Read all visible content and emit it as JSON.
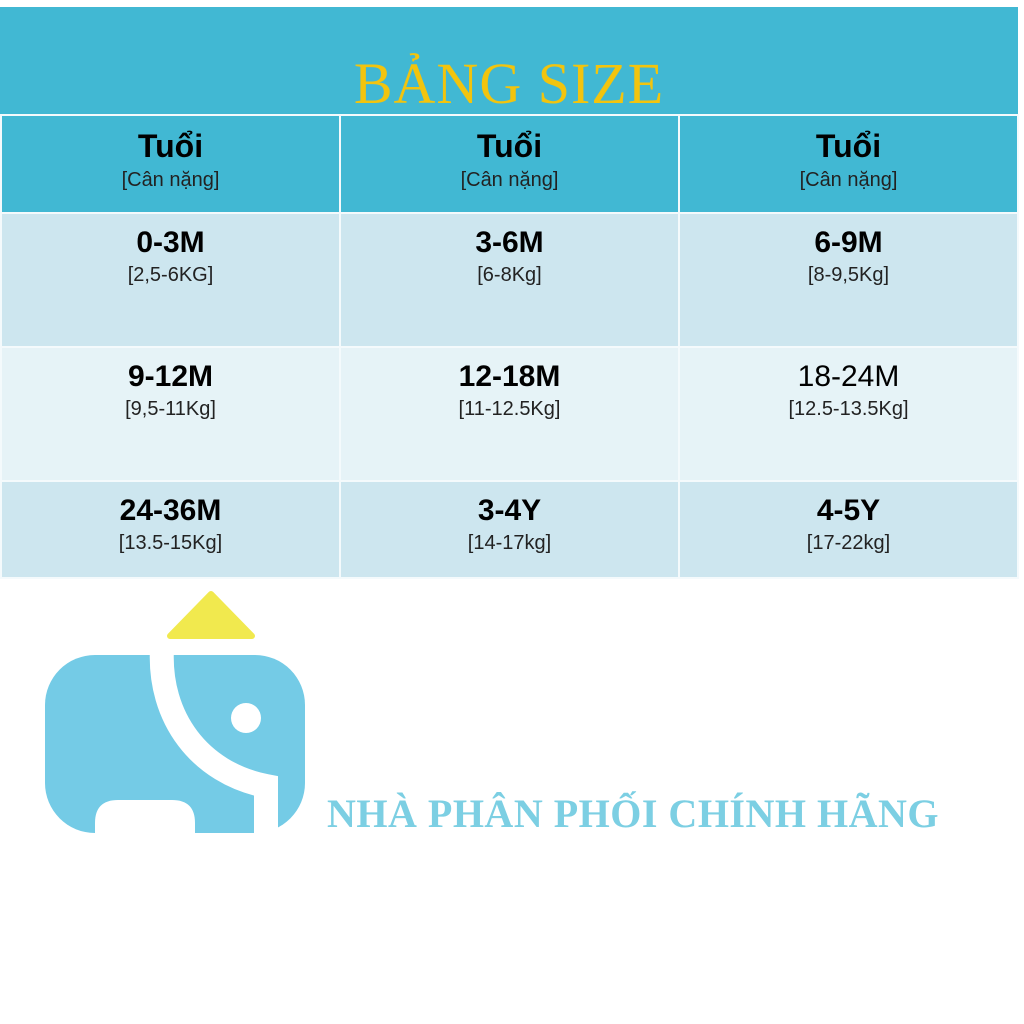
{
  "title": "BẢNG SIZE",
  "header": [
    {
      "age": "Tuổi",
      "weight": "[Cân nặng]"
    },
    {
      "age": "Tuổi",
      "weight": "[Cân nặng]"
    },
    {
      "age": "Tuổi",
      "weight": "[Cân nặng]"
    }
  ],
  "rows": [
    [
      {
        "age": "0-3M",
        "weight": "[2,5-6KG]"
      },
      {
        "age": "3-6M",
        "weight": "[6-8Kg]"
      },
      {
        "age": "6-9M",
        "weight": "[8-9,5Kg]"
      }
    ],
    [
      {
        "age": "9-12M",
        "weight": "[9,5-11Kg]"
      },
      {
        "age": "12-18M",
        "weight": "[11-12.5Kg]"
      },
      {
        "age": "18-24M",
        "weight": "[12.5-13.5Kg]"
      }
    ],
    [
      {
        "age": "24-36M",
        "weight": "[13.5-15Kg]"
      },
      {
        "age": "3-4Y",
        "weight": "[14-17kg]"
      },
      {
        "age": "4-5Y",
        "weight": "[17-22kg]"
      }
    ]
  ],
  "logo": {
    "icon": "elephant-icon",
    "body_color": "#74cbe6",
    "hat_color": "#f1e94e"
  },
  "slogan": "NHÀ PHÂN PHỐI CHÍNH HÃNG",
  "colors": {
    "header_bg": "#41b8d3",
    "title": "#f2c40e",
    "row_dark": "#cde6ef",
    "row_light": "#e6f3f7"
  }
}
